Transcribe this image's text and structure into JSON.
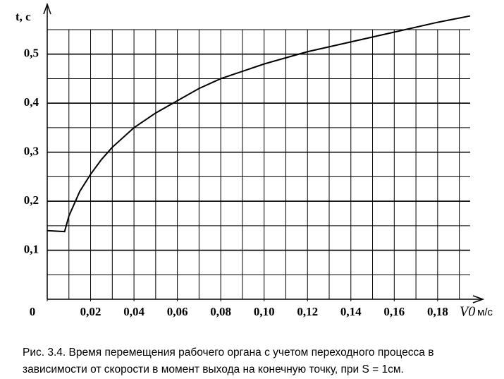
{
  "chart_data": {
    "type": "line",
    "y_label": "t, c",
    "x_label": "V0",
    "x_unit": "м/с",
    "caption": "Рис. 3.4. Время перемещения рабочего органа с учетом переходного процесса в зависимости от скорости в момент выхода на конечную точку, при S = 1см.",
    "x": [
      0,
      0.008,
      0.01,
      0.015,
      0.02,
      0.025,
      0.03,
      0.04,
      0.05,
      0.06,
      0.07,
      0.08,
      0.09,
      0.1,
      0.12,
      0.14,
      0.16,
      0.18,
      0.195
    ],
    "series": [
      {
        "color": "#000000",
        "values": [
          0.14,
          0.138,
          0.17,
          0.22,
          0.255,
          0.285,
          0.31,
          0.35,
          0.38,
          0.405,
          0.43,
          0.45,
          0.465,
          0.48,
          0.505,
          0.525,
          0.545,
          0.565,
          0.578
        ]
      }
    ],
    "xlim": [
      0,
      0.195
    ],
    "ylim": [
      0,
      0.55
    ],
    "xticks": [
      0,
      {
        "value": 0.02,
        "label": "0,02"
      },
      {
        "value": 0.04,
        "label": "0,04"
      },
      {
        "value": 0.06,
        "label": "0,06"
      },
      {
        "value": 0.08,
        "label": "0,08"
      },
      {
        "value": 0.1,
        "label": "0,10"
      },
      {
        "value": 0.12,
        "label": "0,12"
      },
      {
        "value": 0.14,
        "label": "0,14"
      },
      {
        "value": 0.16,
        "label": "0,16"
      },
      {
        "value": 0.18,
        "label": "0,18"
      }
    ],
    "yticks": [
      {
        "value": 0.1,
        "label": "0,1"
      },
      {
        "value": 0.2,
        "label": "0,2"
      },
      {
        "value": 0.3,
        "label": "0,3"
      },
      {
        "value": 0.4,
        "label": "0,4"
      },
      {
        "value": 0.5,
        "label": "0,5"
      }
    ],
    "xgrid": [
      0.01,
      0.02,
      0.03,
      0.04,
      0.05,
      0.06,
      0.07,
      0.08,
      0.09,
      0.1,
      0.11,
      0.12,
      0.13,
      0.14,
      0.15,
      0.16,
      0.17,
      0.18,
      0.19
    ],
    "ygrid": [
      0.05,
      0.1,
      0.15,
      0.2,
      0.25,
      0.3,
      0.35,
      0.4,
      0.45,
      0.5,
      0.55
    ],
    "grid": true
  }
}
